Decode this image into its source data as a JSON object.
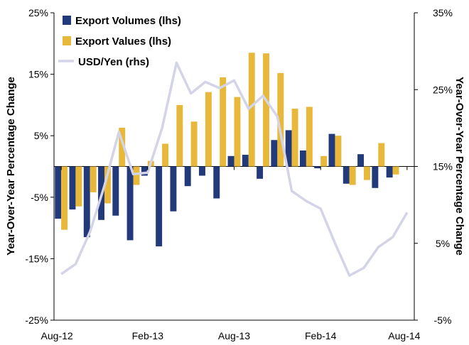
{
  "chart_data": {
    "type": "bar+line",
    "title": "",
    "x": [
      "Aug-12",
      "Sep-12",
      "Oct-12",
      "Nov-12",
      "Dec-12",
      "Jan-13",
      "Feb-13",
      "Mar-13",
      "Apr-13",
      "May-13",
      "Jun-13",
      "Jul-13",
      "Aug-13",
      "Sep-13",
      "Oct-13",
      "Nov-13",
      "Dec-13",
      "Jan-14",
      "Feb-14",
      "Mar-14",
      "Apr-14",
      "May-14",
      "Jun-14",
      "Jul-14",
      "Aug-14"
    ],
    "x_tick_labels": [
      "Aug-12",
      "Feb-13",
      "Aug-13",
      "Feb-14",
      "Aug-14"
    ],
    "x_tick_positions": [
      "Aug-12",
      "Feb-13",
      "Aug-13",
      "Feb-14",
      "Aug-14"
    ],
    "ylabel_left": "Year-Over-Year  Percentage Change",
    "ylabel_right": "Year-Over-Year Percentage Change",
    "ylim_left": [
      -25,
      25
    ],
    "ylim_right": [
      -5,
      35
    ],
    "yticks_left": [
      "-25%",
      "-15%",
      "-5%",
      "5%",
      "15%",
      "25%"
    ],
    "yticks_right": [
      "-5%",
      "5%",
      "15%",
      "25%",
      "35%"
    ],
    "grid": false,
    "legend_position": "top-left",
    "colors": {
      "volumes": "#22397a",
      "values": "#e8b83a",
      "usdyen": "#d4d4e8"
    },
    "series": [
      {
        "name": "Export Volumes (lhs)",
        "type": "bar",
        "axis": "left",
        "values": [
          -8.5,
          -7.0,
          -11.5,
          -8.7,
          -8.0,
          -12.0,
          -1.5,
          -13.0,
          -7.3,
          -3.2,
          -1.5,
          -5.2,
          1.7,
          1.9,
          -2.0,
          4.3,
          5.9,
          2.6,
          -0.3,
          5.3,
          -2.8,
          2.0,
          -3.5,
          -1.8,
          null
        ]
      },
      {
        "name": "Export Values (lhs)",
        "type": "bar",
        "axis": "left",
        "values": [
          -10.3,
          -6.5,
          -4.2,
          -6.0,
          6.3,
          -3.0,
          0.9,
          3.7,
          10.0,
          7.3,
          12.1,
          14.5,
          11.3,
          18.5,
          18.4,
          15.2,
          9.4,
          9.7,
          1.7,
          5.0,
          -3.0,
          -2.2,
          3.8,
          -1.3,
          null
        ]
      },
      {
        "name": "USD/Yen (rhs)",
        "type": "line",
        "axis": "right",
        "x_continuous": [
          0.0,
          1.0,
          2.0,
          3.0,
          4.0,
          5.0,
          6.0,
          7.0,
          8.0,
          9.0,
          10.0,
          11.0,
          12.0,
          13.0,
          14.0,
          15.0,
          16.0,
          17.0,
          18.0,
          19.0,
          20.0,
          21.0,
          22.0,
          23.0,
          24.0
        ],
        "values": [
          1.0,
          2.3,
          6.5,
          12.5,
          19.5,
          14.0,
          14.2,
          20.0,
          28.5,
          24.5,
          26.0,
          25.2,
          26.2,
          22.5,
          24.2,
          21.5,
          11.8,
          10.5,
          9.5,
          5.0,
          0.8,
          1.8,
          4.5,
          5.8,
          9.0
        ]
      }
    ]
  }
}
